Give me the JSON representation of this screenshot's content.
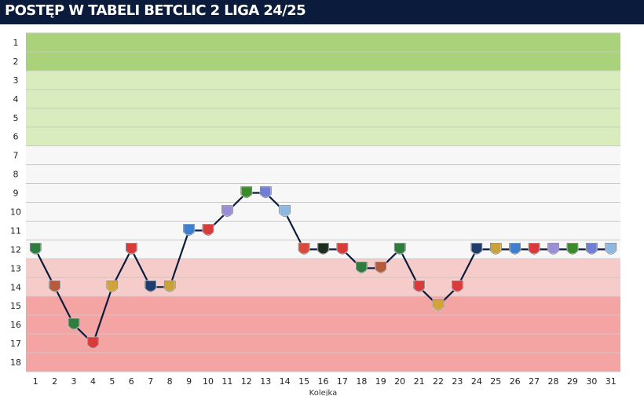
{
  "header": {
    "title": "POSTĘP W TABELI BETCLIC 2 LIGA 24/25"
  },
  "chart_data": {
    "type": "line",
    "title": "POSTĘP W TABELI BETCLIC 2 LIGA 24/25",
    "xlabel": "Kolejka",
    "ylabel": "",
    "x": [
      1,
      2,
      3,
      4,
      5,
      6,
      7,
      8,
      9,
      10,
      11,
      12,
      13,
      14,
      15,
      16,
      17,
      18,
      19,
      20,
      21,
      22,
      23,
      24,
      25,
      26,
      27,
      28,
      29,
      30,
      31
    ],
    "y_ticks": [
      1,
      2,
      3,
      4,
      5,
      6,
      7,
      8,
      9,
      10,
      11,
      12,
      13,
      14,
      15,
      16,
      17,
      18
    ],
    "ylim": [
      1,
      18
    ],
    "y_inverted": true,
    "grid": true,
    "series": [
      {
        "values": [
          12,
          14,
          16,
          17,
          14,
          12,
          14,
          14,
          11,
          11,
          10,
          9,
          9,
          10,
          12,
          12,
          12,
          13,
          13,
          12,
          14,
          15,
          14,
          12,
          12,
          12,
          12,
          12,
          12,
          12,
          12
        ]
      }
    ],
    "zones": [
      {
        "from": 1,
        "to": 2,
        "color": "#a9d27a"
      },
      {
        "from": 3,
        "to": 6,
        "color": "#d8ecbd"
      },
      {
        "from": 7,
        "to": 12,
        "color": "#f7f7f7"
      },
      {
        "from": 13,
        "to": 14,
        "color": "#f6cccb"
      },
      {
        "from": 15,
        "to": 18,
        "color": "#f4a5a3"
      }
    ],
    "line_color": "#0b1b3c",
    "marker_colors": [
      "#2f7d3e",
      "#b55a3a",
      "#2f7d3e",
      "#d93b3b",
      "#d2a23b",
      "#d93b3b",
      "#1f3c6e",
      "#c9a23b",
      "#3f7fd0",
      "#d93b3b",
      "#9a8fd6",
      "#3a8b2a",
      "#6f7fd6",
      "#8fb8e0",
      "#d94a3b",
      "#1f2f1f",
      "#d93b3b",
      "#2f7d3e",
      "#b55a3a",
      "#2f7d3e",
      "#d93b3b",
      "#d2a23b",
      "#d93b3b",
      "#1f3c6e",
      "#c9a23b",
      "#3f7fd0",
      "#d93b3b",
      "#9a8fd6",
      "#3a8b2a",
      "#6f7fd6",
      "#8fb8e0"
    ]
  }
}
